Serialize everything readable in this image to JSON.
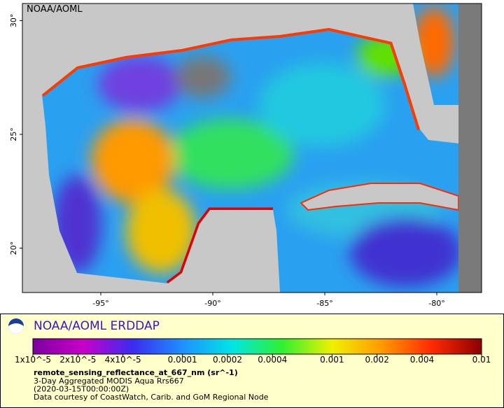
{
  "map": {
    "title": "NOAA/AOML",
    "xlim": [
      -98.5,
      -78.0
    ],
    "ylim": [
      18.05,
      30.75
    ],
    "xticks": [
      {
        "value": -95,
        "label": "-95°"
      },
      {
        "value": -90,
        "label": "-90°"
      },
      {
        "value": -85,
        "label": "-85°"
      },
      {
        "value": -80,
        "label": "-80°"
      }
    ],
    "yticks": [
      {
        "value": 20,
        "label": "20°"
      },
      {
        "value": 25,
        "label": "25°"
      },
      {
        "value": 30,
        "label": "30°"
      }
    ]
  },
  "legend": {
    "title": "NOAA/AOML ERDDAP",
    "colorbar": {
      "log": true,
      "lim": [
        1e-05,
        0.01
      ],
      "colors": [
        "#7a00a0",
        "#c800c8",
        "#3a2cf0",
        "#1e90ff",
        "#00e5e5",
        "#30f030",
        "#f0f000",
        "#ff9a00",
        "#ff2a00",
        "#8b0000"
      ],
      "ticks": [
        {
          "value": 1e-05,
          "label": "1x10^-5"
        },
        {
          "value": 2e-05,
          "label": "2x10^-5"
        },
        {
          "value": 4e-05,
          "label": "4x10^-5"
        },
        0.0001,
        0.0002,
        0.0004,
        0.001,
        0.002,
        0.004,
        0.01
      ]
    },
    "variable": "remote_sensing_reflectance_at_667_nm (sr^-1)",
    "lines": [
      "3-Day Aggregated MODIS Aqua Rrs667",
      "(2020-03-15T00:00:00Z)",
      "Data courtesy of CoastWatch, Carib. and GoM Regional Node"
    ]
  }
}
